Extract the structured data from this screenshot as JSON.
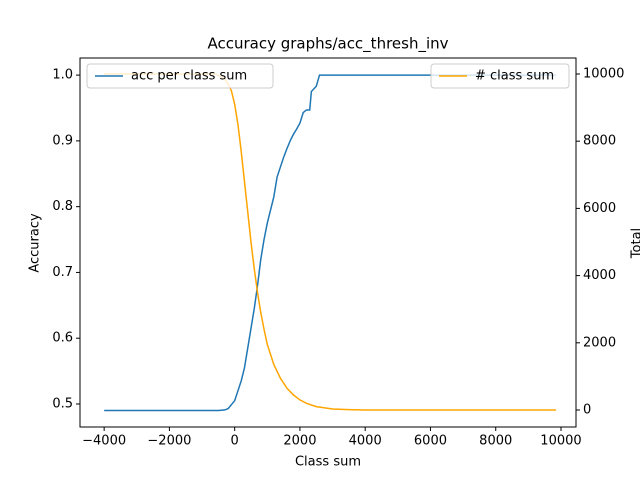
{
  "chart_data": {
    "type": "line",
    "title": "Accuracy graphs/acc_thresh_inv",
    "xlabel": "Class sum",
    "ylabel": "Accuracy",
    "y2label": "Total",
    "xlim": [
      -4740,
      10460
    ],
    "ylim": [
      0.465,
      1.026
    ],
    "y2lim": [
      -506,
      10476
    ],
    "xticks": [
      {
        "value": -4000,
        "label": "−4000"
      },
      {
        "value": -2000,
        "label": "−2000"
      },
      0,
      2000,
      4000,
      6000,
      8000,
      10000
    ],
    "yticks": [
      0.5,
      0.6,
      0.7,
      0.8,
      0.9,
      {
        "value": 1,
        "label": "1.0"
      }
    ],
    "y2ticks": [
      0,
      2000,
      4000,
      6000,
      8000,
      10000
    ],
    "series": [
      {
        "name": "acc per class sum",
        "color": "#1f77b4",
        "axis": "y",
        "legend": "upper left",
        "x": [
          -4000,
          -500,
          -300,
          -200,
          0,
          100,
          200,
          300,
          400,
          500,
          600,
          700,
          800,
          900,
          1000,
          1100,
          1200,
          1300,
          1400,
          1500,
          1600,
          1700,
          1800,
          1900,
          2000,
          2100,
          2200,
          2300,
          2350,
          2500,
          2600,
          9850
        ],
        "values": [
          0.49,
          0.49,
          0.491,
          0.493,
          0.505,
          0.52,
          0.535,
          0.555,
          0.585,
          0.615,
          0.645,
          0.68,
          0.72,
          0.75,
          0.775,
          0.795,
          0.815,
          0.845,
          0.86,
          0.875,
          0.888,
          0.9,
          0.91,
          0.918,
          0.927,
          0.943,
          0.947,
          0.947,
          0.975,
          0.983,
          1.0,
          1.0
        ]
      },
      {
        "name": "# class sum",
        "color": "#ffa500",
        "axis": "y2",
        "legend": "upper right",
        "x": [
          -4000,
          -600,
          -500,
          -300,
          -200,
          -100,
          0,
          100,
          200,
          300,
          400,
          500,
          600,
          700,
          800,
          900,
          1000,
          1200,
          1400,
          1600,
          1800,
          2000,
          2200,
          2500,
          3000,
          3500,
          4000,
          9850
        ],
        "values": [
          10000,
          10000,
          9950,
          9850,
          9700,
          9500,
          9100,
          8500,
          7700,
          6800,
          5900,
          5000,
          4200,
          3500,
          2900,
          2400,
          1950,
          1350,
          950,
          650,
          450,
          300,
          200,
          100,
          30,
          10,
          0,
          0
        ]
      }
    ]
  }
}
